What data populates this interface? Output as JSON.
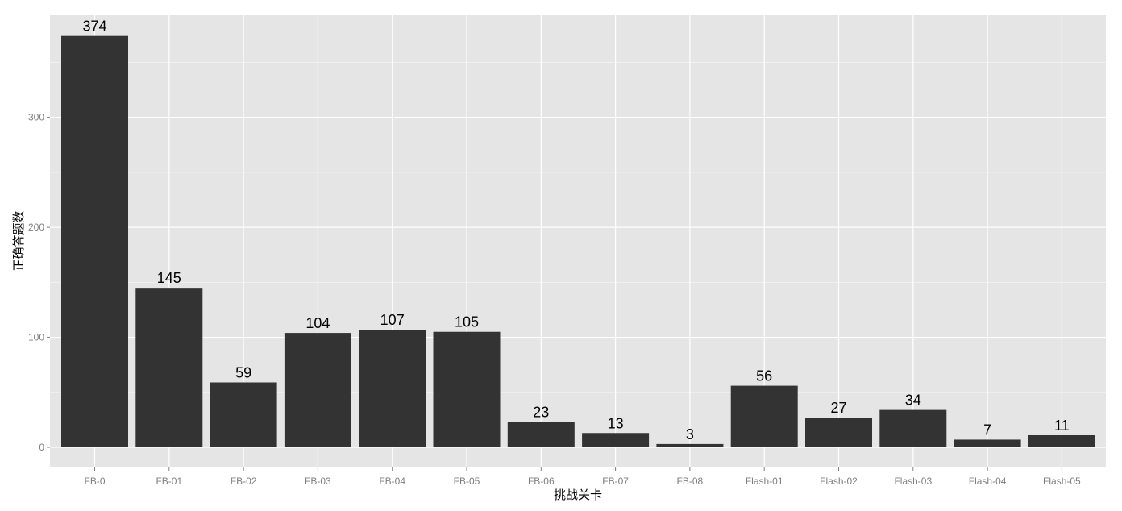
{
  "chart_data": {
    "type": "bar",
    "title": "",
    "xlabel": "挑战关卡",
    "ylabel": "正确答题数",
    "categories": [
      "FB-0",
      "FB-01",
      "FB-02",
      "FB-03",
      "FB-04",
      "FB-05",
      "FB-06",
      "FB-07",
      "FB-08",
      "Flash-01",
      "Flash-02",
      "Flash-03",
      "Flash-04",
      "Flash-05"
    ],
    "values": [
      374,
      145,
      59,
      104,
      107,
      105,
      23,
      13,
      3,
      56,
      27,
      34,
      7,
      11
    ],
    "data_labels": [
      "374",
      "145",
      "59",
      "104",
      "107",
      "105",
      "23",
      "13",
      "3",
      "56",
      "27",
      "34",
      "7",
      "11"
    ],
    "ylim": [
      0,
      393
    ],
    "yticks": [
      0,
      100,
      200,
      300
    ],
    "ytick_labels": [
      "0",
      "100",
      "200",
      "300"
    ],
    "grid": true,
    "legend": "none",
    "colors": {
      "bar": "#333333",
      "panel": "#e5e5e5",
      "grid_major": "#ffffff",
      "grid_minor": "#f2f2f2",
      "tick_text": "#7f7f7f",
      "label_text": "#000000"
    }
  }
}
